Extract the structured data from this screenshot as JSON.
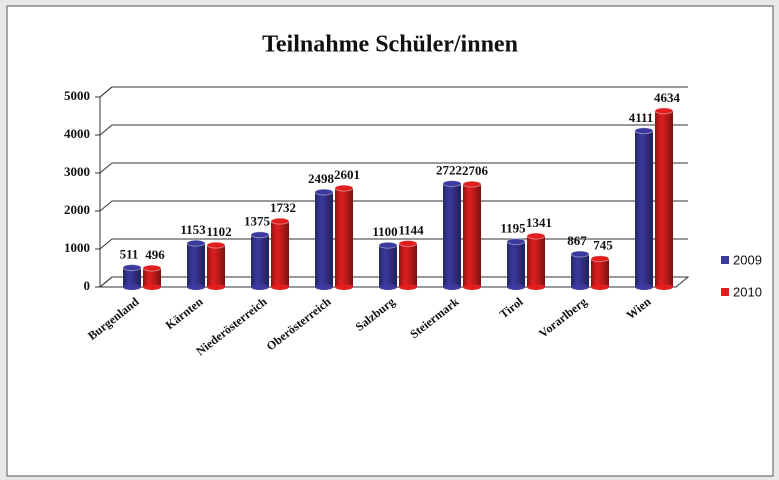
{
  "chart_data": {
    "type": "bar",
    "title": "Teilnahme Schüler/innen",
    "categories": [
      "Burgenland",
      "Kärnten",
      "Niederösterreich",
      "Oberösterreich",
      "Salzburg",
      "Steiermark",
      "Tirol",
      "Vorarlberg",
      "Wien"
    ],
    "series": [
      {
        "name": "2009",
        "color": "#3a3a9e",
        "values": [
          511,
          1153,
          1375,
          2498,
          1100,
          2722,
          1195,
          867,
          4111
        ]
      },
      {
        "name": "2010",
        "color": "#e01e1e",
        "values": [
          496,
          1102,
          1732,
          2601,
          1144,
          2706,
          1341,
          745,
          4634
        ]
      }
    ],
    "ylim": [
      0,
      5000
    ],
    "yticks": [
      0,
      1000,
      2000,
      3000,
      4000,
      5000
    ],
    "grid": true,
    "legend": "right"
  }
}
